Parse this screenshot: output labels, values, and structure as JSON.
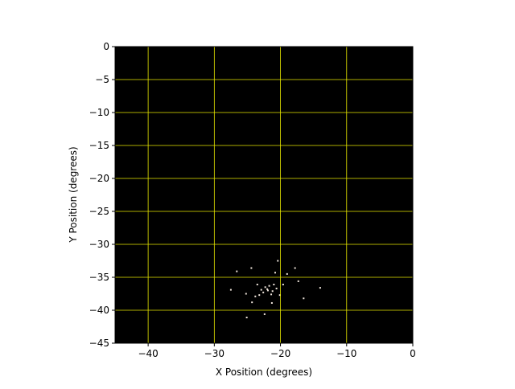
{
  "chart_data": {
    "type": "scatter",
    "xlabel": "X Position (degrees)",
    "ylabel": "Y Position (degrees)",
    "xlim": [
      -45,
      0
    ],
    "ylim": [
      -45,
      0
    ],
    "xticks": [
      -40,
      -30,
      -20,
      -10,
      0
    ],
    "yticks": [
      0,
      -5,
      -10,
      -15,
      -20,
      -25,
      -30,
      -35,
      -40,
      -45
    ],
    "tick_labels_x": [
      "−40",
      "−30",
      "−20",
      "−10",
      "0"
    ],
    "tick_labels_y": [
      "0",
      "−5",
      "−10",
      "−15",
      "−20",
      "−25",
      "−30",
      "−35",
      "−40",
      "−45"
    ],
    "grid": true,
    "background_color": "#000000",
    "grid_color": "#e6e600",
    "point_color": "#f0e6dc",
    "points": [
      [
        -26.6,
        -34.1
      ],
      [
        -20.4,
        -32.5
      ],
      [
        -17.8,
        -33.6
      ],
      [
        -19.0,
        -34.5
      ],
      [
        -17.3,
        -35.6
      ],
      [
        -21.0,
        -36.1
      ],
      [
        -21.9,
        -37.0
      ],
      [
        -22.3,
        -36.5
      ],
      [
        -21.4,
        -37.6
      ],
      [
        -23.5,
        -36.1
      ],
      [
        -25.2,
        -37.5
      ],
      [
        -19.6,
        -36.1
      ],
      [
        -24.3,
        -38.8
      ],
      [
        -21.3,
        -38.9
      ],
      [
        -25.1,
        -41.1
      ],
      [
        -22.4,
        -40.6
      ],
      [
        -27.5,
        -36.9
      ],
      [
        -14.0,
        -36.6
      ],
      [
        -16.5,
        -38.2
      ],
      [
        -24.4,
        -33.6
      ],
      [
        -20.8,
        -34.3
      ],
      [
        -23.2,
        -37.7
      ],
      [
        -20.1,
        -37.7
      ],
      [
        -22.0,
        -36.8
      ],
      [
        -21.7,
        -36.3
      ],
      [
        -22.6,
        -37.3
      ],
      [
        -21.2,
        -37.1
      ],
      [
        -22.9,
        -36.9
      ],
      [
        -23.8,
        -37.9
      ],
      [
        -20.6,
        -36.7
      ]
    ]
  }
}
